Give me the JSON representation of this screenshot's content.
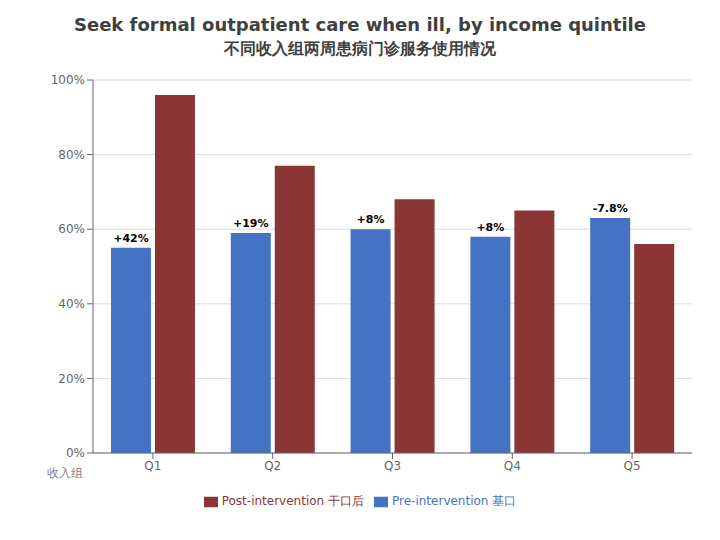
{
  "chart_data": {
    "type": "bar",
    "title": "Seek formal outpatient care when ill, by income quintile",
    "subtitle": "不同收入组两周患病门诊服务使用情况",
    "xlabel": "收入组",
    "categories": [
      "Q1",
      "Q2",
      "Q3",
      "Q4",
      "Q5"
    ],
    "series": [
      {
        "name": "Pre-intervention 基口",
        "color": "#4472C4",
        "values": [
          55,
          59,
          60,
          58,
          63
        ],
        "annotations": [
          "+42%",
          "+19%",
          "+8%",
          "+8%",
          "-7.8%"
        ]
      },
      {
        "name": "Post-intervention 干口后",
        "color": "#8B3535",
        "values": [
          96,
          77,
          68,
          65,
          56
        ]
      }
    ],
    "ylim": [
      0,
      100
    ],
    "yticks": [
      {
        "value": 0,
        "label": "0%"
      },
      {
        "value": 20,
        "label": "20%"
      },
      {
        "value": 40,
        "label": "40%"
      },
      {
        "value": 60,
        "label": "60%"
      },
      {
        "value": 80,
        "label": "80%"
      },
      {
        "value": 100,
        "label": "100%"
      }
    ],
    "grid": true,
    "legend": "bottom"
  }
}
